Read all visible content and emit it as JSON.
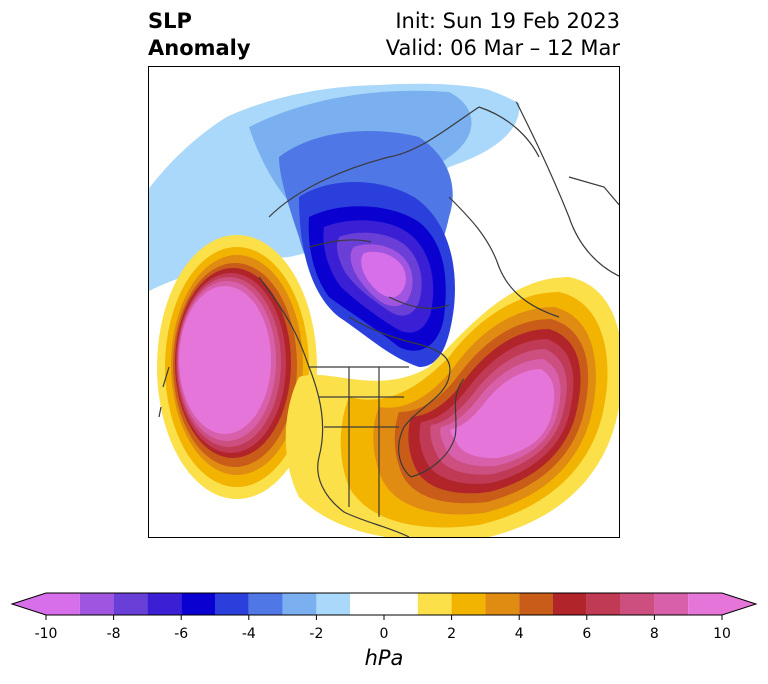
{
  "header": {
    "title_line1": "SLP",
    "title_line2": "Anomaly",
    "init": "Init: Sun 19 Feb 2023",
    "valid": "Valid: 06 Mar – 12 Mar"
  },
  "colorbar": {
    "unit": "hPa",
    "ticks": [
      "-10",
      "-8",
      "-6",
      "-4",
      "-2",
      "0",
      "2",
      "4",
      "6",
      "8",
      "10"
    ],
    "tick_values": [
      -10,
      -8,
      -6,
      -4,
      -2,
      0,
      2,
      4,
      6,
      8,
      10
    ],
    "boundaries": [
      -10,
      -9,
      -8,
      -7,
      -6,
      -5,
      -4,
      -3,
      -2,
      -1,
      1,
      2,
      3,
      4,
      5,
      6,
      7,
      8,
      9,
      10
    ],
    "colors": [
      "#d76fea",
      "#a055e0",
      "#6a3fd8",
      "#3a1fd4",
      "#0a00d0",
      "#2b3fdc",
      "#4f77e6",
      "#7aaff0",
      "#aad8fa",
      "#ffffff",
      "#fbe04a",
      "#f2b400",
      "#e08c12",
      "#c85c18",
      "#b0242a",
      "#c03a55",
      "#cc4f80",
      "#d860aa",
      "#e575d8"
    ],
    "extend_low_color": "#d76fea",
    "extend_high_color": "#e575d8"
  },
  "map": {
    "projection": "north-polar-stereographic",
    "features": [
      {
        "name": "north-atlantic-high-anomaly",
        "value_hpa": 10
      },
      {
        "name": "north-pacific-high-anomaly",
        "value_hpa": 10
      },
      {
        "name": "polar-low-anomaly",
        "value_hpa": -10
      }
    ]
  }
}
